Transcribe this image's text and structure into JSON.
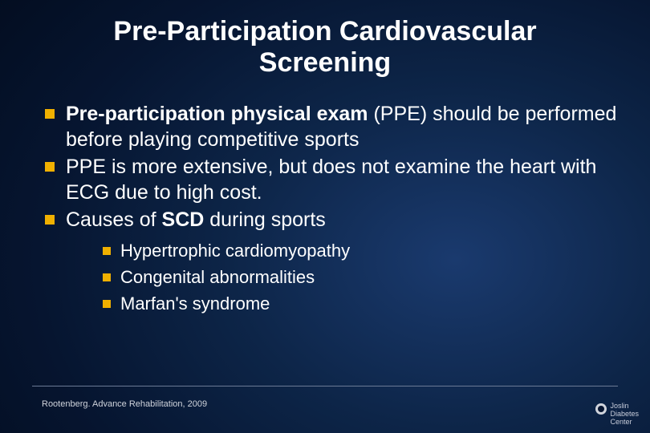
{
  "slide": {
    "title": "Pre-Participation Cardiovascular Screening",
    "title_fontsize": 34,
    "title_color": "#ffffff",
    "bullets": [
      {
        "segments": [
          {
            "text": "Pre-participation physical exam",
            "bold": true
          },
          {
            "text": " (PPE) should be performed  before playing competitive sports",
            "bold": false
          }
        ]
      },
      {
        "segments": [
          {
            "text": "PPE is more extensive, but does not examine the heart with ECG due to high cost.",
            "bold": false
          }
        ]
      },
      {
        "segments": [
          {
            "text": "Causes of ",
            "bold": false
          },
          {
            "text": "SCD",
            "bold": true
          },
          {
            "text": " during sports",
            "bold": false
          }
        ],
        "sub": [
          "Hypertrophic cardiomyopathy",
          "Congenital abnormalities",
          "Marfan's syndrome"
        ]
      }
    ],
    "bullet_fontsize": 25,
    "sub_bullet_fontsize": 22,
    "bullet_marker_color": "#f0b000",
    "body_text_color": "#ffffff",
    "citation": "Rootenberg.  Advance Rehabilitation, 2009",
    "citation_fontsize": 11,
    "citation_color": "#d0d4dc",
    "footer_line_color": "#6b7a95",
    "logo": {
      "line1": "Joslin",
      "line2": "Diabetes",
      "line3": "Center",
      "text_color": "#c8cddb",
      "icon_color": "#d0d4dc"
    },
    "background": {
      "type": "radial-gradient",
      "stops": [
        "#1a3a6e",
        "#0d2548",
        "#061530",
        "#020a1a"
      ]
    }
  }
}
